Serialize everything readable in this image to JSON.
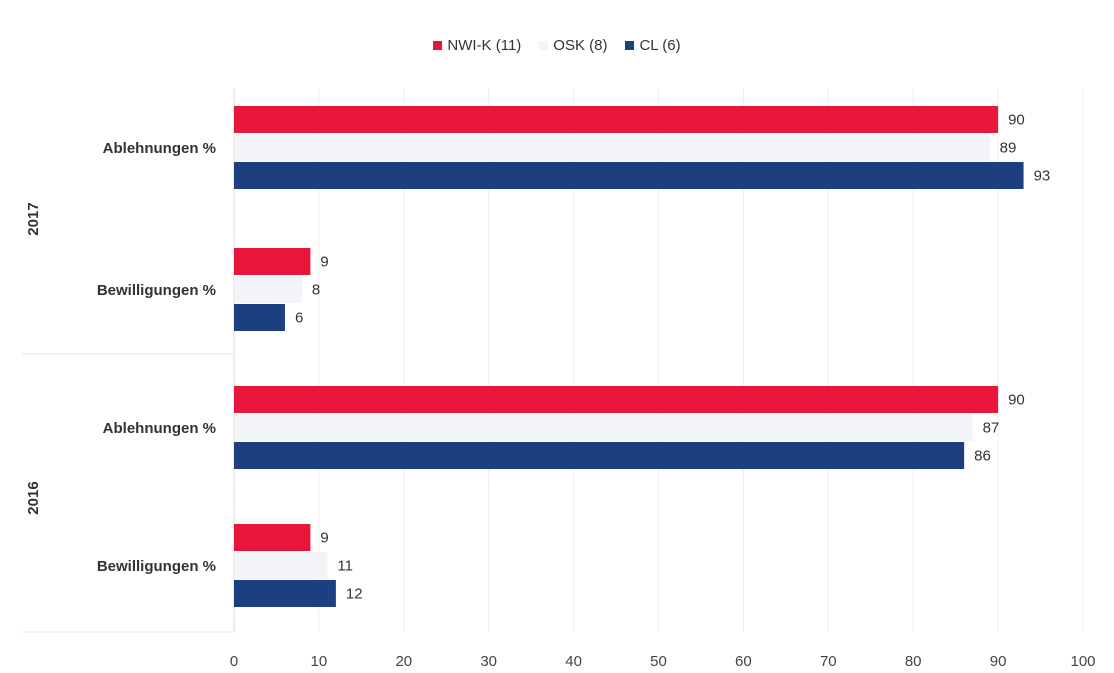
{
  "chart_data": {
    "type": "bar",
    "orientation": "horizontal",
    "x_ticks": [
      "0",
      "10",
      "20",
      "30",
      "40",
      "50",
      "60",
      "70",
      "80",
      "90",
      "100"
    ],
    "xlim": [
      0,
      100
    ],
    "legend_position": "top-center",
    "grid": true,
    "groups": [
      {
        "label": "2017",
        "categories": [
          {
            "label": "Ablehnungen %",
            "values": [
              90,
              89,
              93
            ]
          },
          {
            "label": "Bewilligungen %",
            "values": [
              9,
              8,
              6
            ]
          }
        ]
      },
      {
        "label": "2016",
        "categories": [
          {
            "label": "Ablehnungen %",
            "values": [
              90,
              87,
              86
            ]
          },
          {
            "label": "Bewilligungen %",
            "values": [
              9,
              11,
              12
            ]
          }
        ]
      }
    ],
    "series": [
      {
        "name": "NWI-K (11)",
        "color": "#e8173a"
      },
      {
        "name": "OSK (8)",
        "color": "#f2f4f8"
      },
      {
        "name": "CL (6)",
        "color": "#1e3f7f"
      }
    ]
  }
}
